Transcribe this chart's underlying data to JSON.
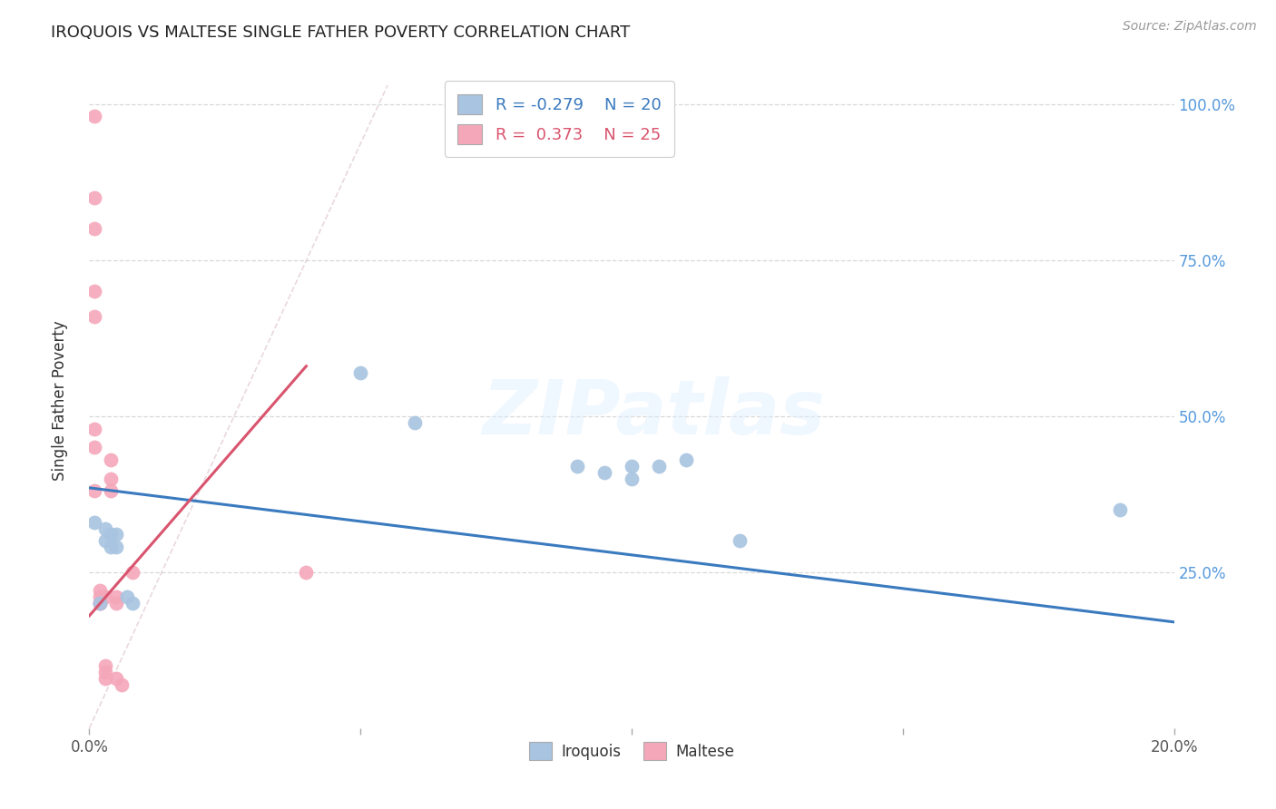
{
  "title": "IROQUOIS VS MALTESE SINGLE FATHER POVERTY CORRELATION CHART",
  "source": "Source: ZipAtlas.com",
  "ylabel": "Single Father Poverty",
  "xlim": [
    0.0,
    0.2
  ],
  "ylim": [
    0.0,
    1.05
  ],
  "xtick_vals": [
    0.0,
    0.05,
    0.1,
    0.15,
    0.2
  ],
  "xtick_labels": [
    "0.0%",
    "",
    "",
    "",
    "20.0%"
  ],
  "ytick_vals_right": [
    1.0,
    0.75,
    0.5,
    0.25
  ],
  "ytick_labels_right": [
    "100.0%",
    "75.0%",
    "50.0%",
    "25.0%"
  ],
  "legend_r_iroquois": "-0.279",
  "legend_n_iroquois": "20",
  "legend_r_maltese": "0.373",
  "legend_n_maltese": "25",
  "color_iroquois": "#a8c4e0",
  "color_maltese": "#f4a7b9",
  "color_iroquois_line": "#3a7abf",
  "color_maltese_line": "#d9546e",
  "color_diagonal": "#dbbfc8",
  "background_color": "#ffffff",
  "grid_color": "#d8d8d8",
  "watermark": "ZIPatlas",
  "iroquois_x": [
    0.001,
    0.002,
    0.003,
    0.003,
    0.004,
    0.004,
    0.005,
    0.005,
    0.007,
    0.008,
    0.05,
    0.06,
    0.09,
    0.095,
    0.1,
    0.1,
    0.105,
    0.11,
    0.12,
    0.19
  ],
  "iroquois_y": [
    0.33,
    0.2,
    0.3,
    0.32,
    0.29,
    0.31,
    0.29,
    0.31,
    0.21,
    0.2,
    0.57,
    0.49,
    0.42,
    0.41,
    0.42,
    0.4,
    0.42,
    0.43,
    0.3,
    0.35
  ],
  "maltese_x": [
    0.001,
    0.001,
    0.001,
    0.001,
    0.001,
    0.001,
    0.001,
    0.001,
    0.002,
    0.002,
    0.002,
    0.002,
    0.003,
    0.003,
    0.003,
    0.003,
    0.004,
    0.004,
    0.004,
    0.005,
    0.005,
    0.005,
    0.006,
    0.008,
    0.04
  ],
  "maltese_y": [
    0.98,
    0.85,
    0.8,
    0.7,
    0.66,
    0.48,
    0.45,
    0.38,
    0.22,
    0.21,
    0.2,
    0.2,
    0.21,
    0.1,
    0.09,
    0.08,
    0.43,
    0.4,
    0.38,
    0.21,
    0.2,
    0.08,
    0.07,
    0.25,
    0.25
  ],
  "iroquois_trendline_x": [
    0.0,
    0.2
  ],
  "iroquois_trendline_y": [
    0.385,
    0.17
  ],
  "maltese_trendline_x": [
    0.0,
    0.04
  ],
  "maltese_trendline_y": [
    0.18,
    0.58
  ]
}
